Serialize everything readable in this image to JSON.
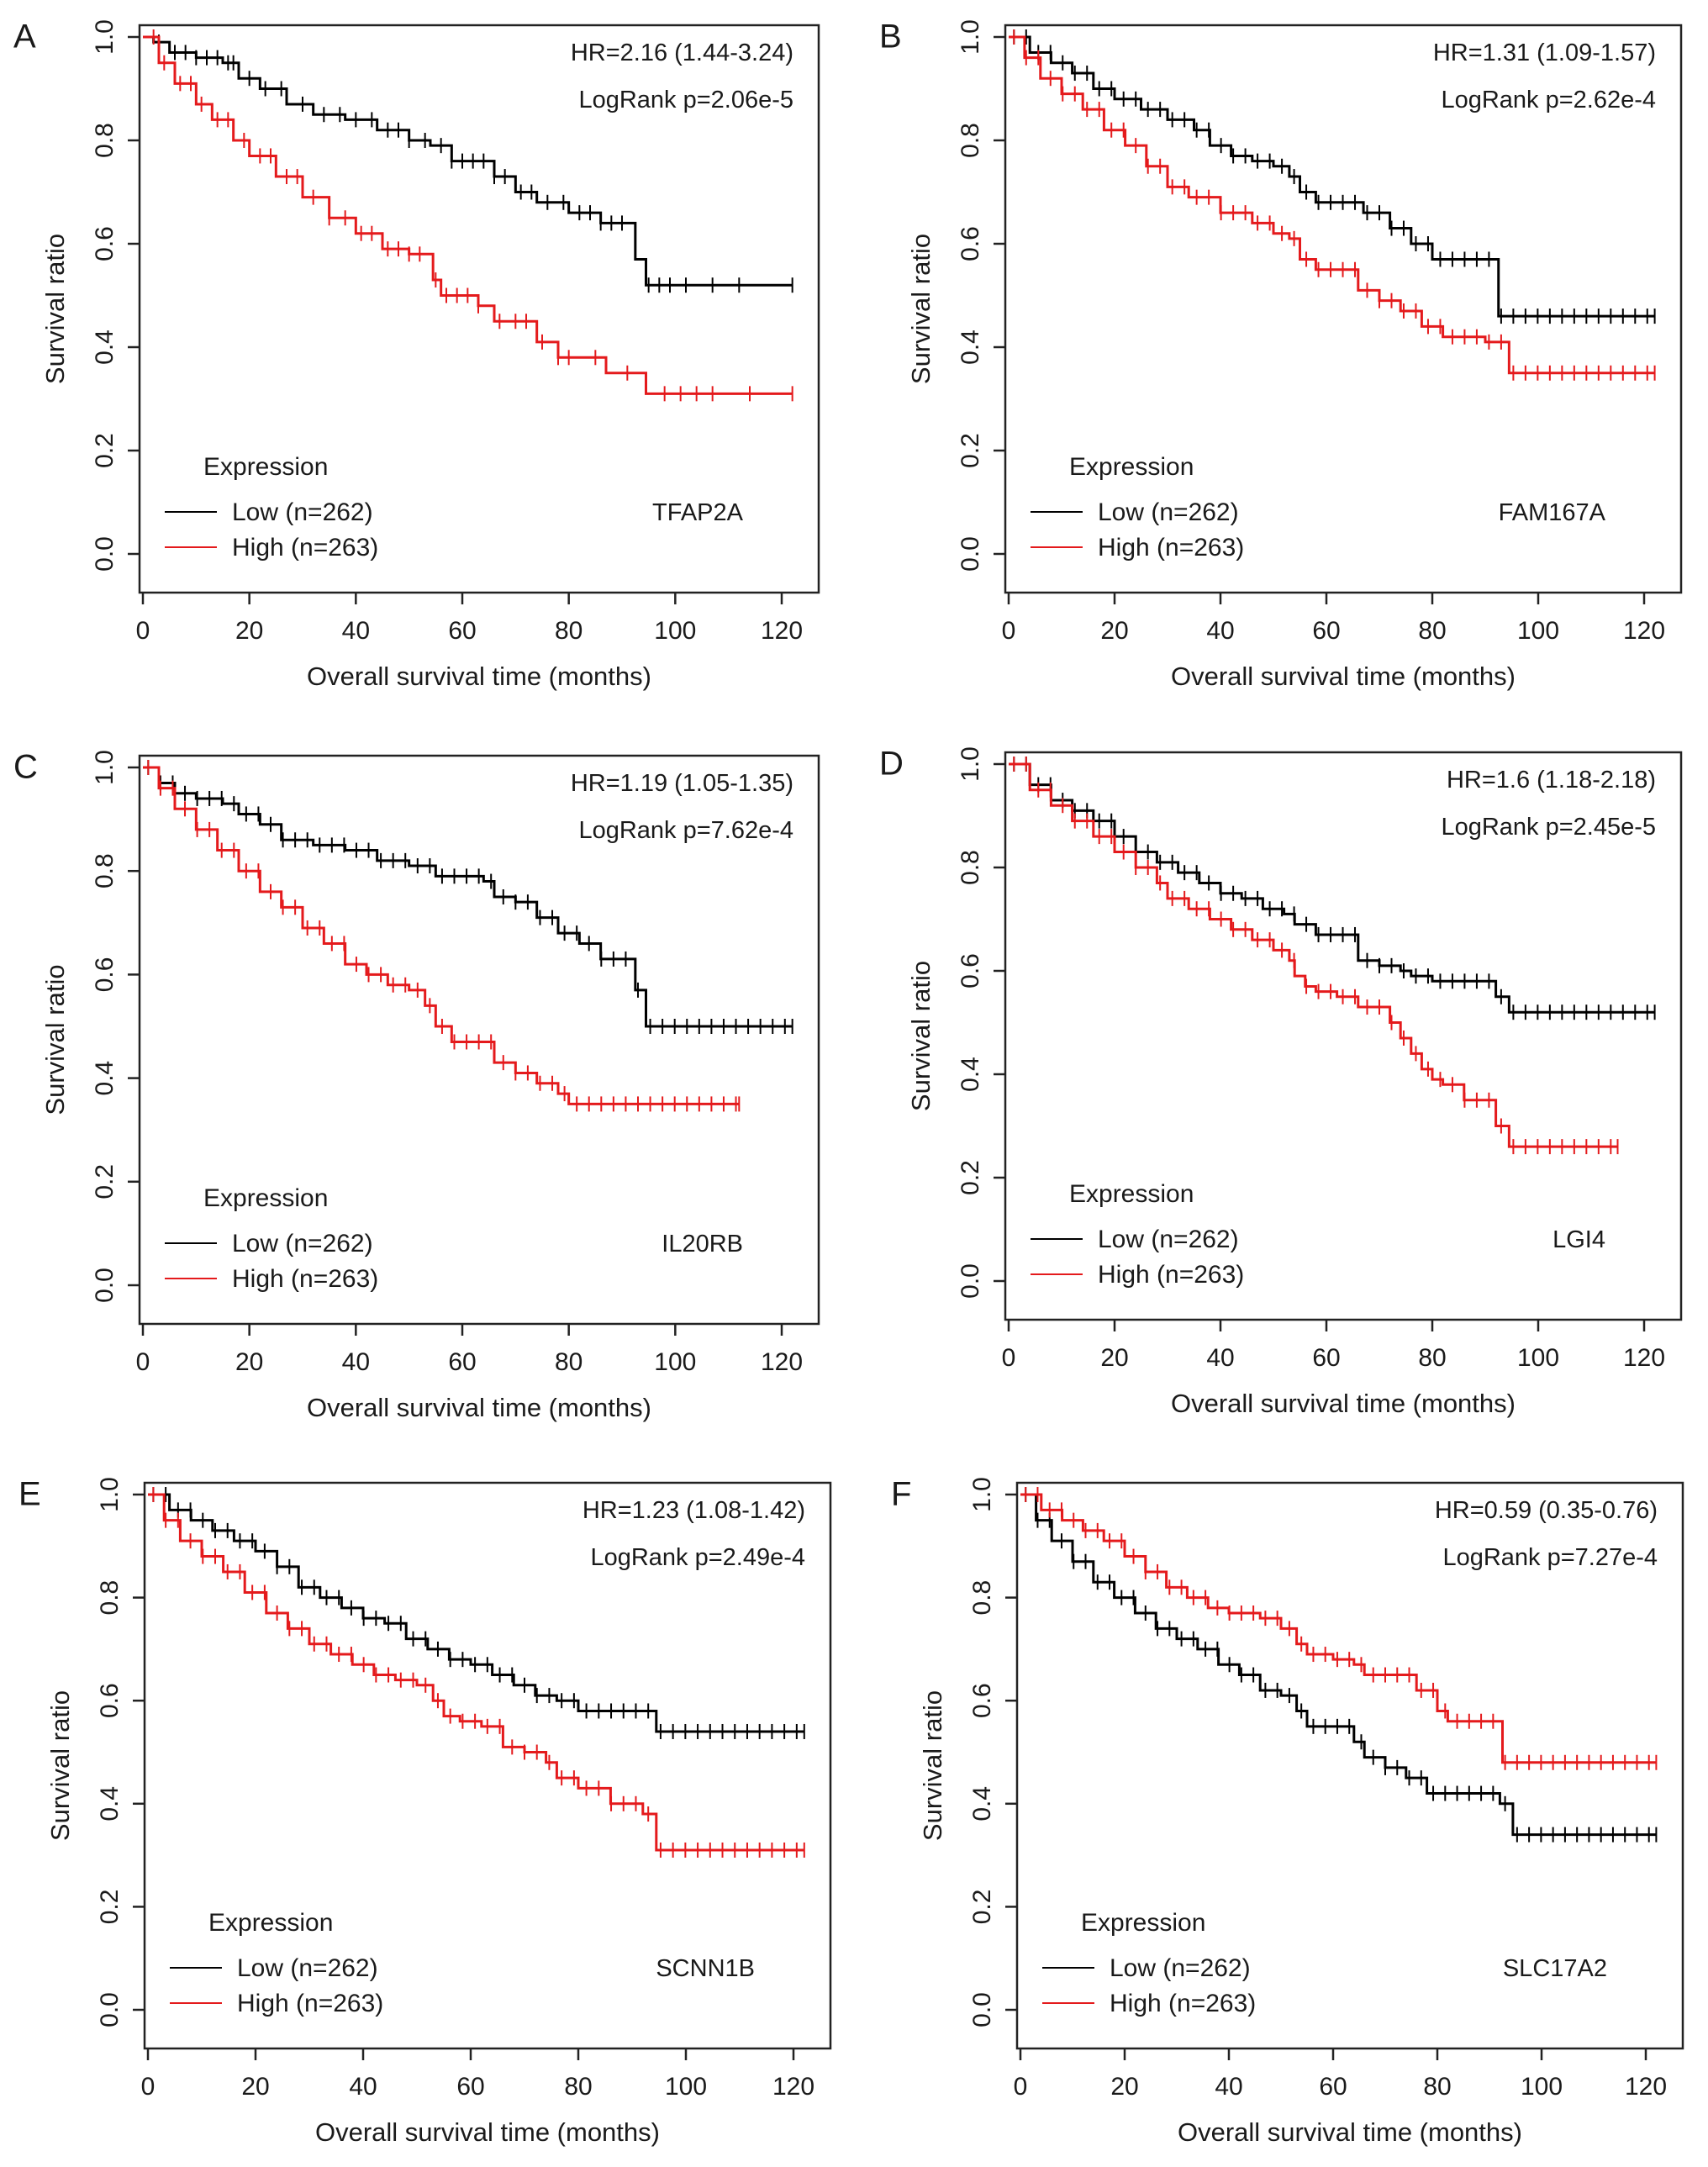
{
  "chart_data": [
    {
      "type": "line",
      "panel_label": "A",
      "gene": "TFAP2A",
      "hr_text": "HR=2.16 (1.44-3.24)",
      "logrank_text": "LogRank p=2.06e-5",
      "xlabel": "Overall survival time (months)",
      "ylabel": "Survival ratio",
      "xlim": [
        0,
        125
      ],
      "ylim": [
        -0.03,
        1.02
      ],
      "xticks": [
        0,
        20,
        40,
        60,
        80,
        100,
        120
      ],
      "yticks": [
        0.0,
        0.2,
        0.4,
        0.6,
        0.8,
        1.0
      ],
      "legend": {
        "title": "Expression",
        "position": "bottom-left",
        "entries": [
          {
            "label": "Low (n=262)",
            "color": "#000000"
          },
          {
            "label": "High (n=263)",
            "color": "#e41a1c"
          }
        ]
      },
      "series": [
        {
          "name": "Low (n=262)",
          "color": "#000000",
          "x": [
            0,
            2,
            5,
            10,
            15,
            18,
            22,
            27,
            32,
            38,
            44,
            50,
            54,
            58,
            66,
            70,
            74,
            80,
            86,
            92,
            92.5,
            94.5,
            122
          ],
          "y": [
            1.0,
            0.99,
            0.97,
            0.96,
            0.95,
            0.92,
            0.9,
            0.87,
            0.85,
            0.84,
            0.82,
            0.8,
            0.79,
            0.76,
            0.73,
            0.7,
            0.68,
            0.66,
            0.64,
            0.64,
            0.57,
            0.52,
            0.52
          ],
          "censor_x": [
            3,
            6,
            8,
            10,
            12,
            14,
            16,
            17,
            20,
            23,
            26,
            30,
            34,
            37,
            40,
            43,
            46,
            48,
            50,
            53,
            56,
            58,
            60,
            62,
            64,
            66,
            68,
            71,
            73,
            76,
            79,
            82,
            84,
            86,
            88,
            90,
            95,
            97,
            99,
            102,
            107,
            112,
            122
          ]
        },
        {
          "name": "High (n=263)",
          "color": "#e41a1c",
          "x": [
            0,
            3,
            6,
            10,
            13,
            17,
            20,
            25,
            30,
            35,
            40,
            45,
            50,
            53,
            54.5,
            56,
            60,
            63,
            66,
            70,
            74,
            78,
            81,
            87,
            94.5,
            122
          ],
          "y": [
            1.0,
            0.95,
            0.91,
            0.87,
            0.84,
            0.8,
            0.77,
            0.73,
            0.69,
            0.65,
            0.62,
            0.59,
            0.58,
            0.58,
            0.53,
            0.5,
            0.5,
            0.48,
            0.45,
            0.45,
            0.41,
            0.38,
            0.38,
            0.35,
            0.31,
            0.31
          ],
          "censor_x": [
            2,
            4,
            7,
            9,
            11,
            14,
            16,
            19,
            22,
            24,
            27,
            29,
            32,
            35,
            38,
            41,
            43,
            46,
            48,
            50,
            52,
            55,
            57,
            59,
            61,
            63,
            67,
            70,
            72,
            75,
            78,
            80,
            85,
            91,
            98,
            101,
            104,
            107,
            114,
            122
          ]
        }
      ]
    },
    {
      "type": "line",
      "panel_label": "B",
      "gene": "FAM167A",
      "hr_text": "HR=1.31 (1.09-1.57)",
      "logrank_text": "LogRank p=2.62e-4",
      "xlabel": "Overall survival time (months)",
      "ylabel": "Survival ratio",
      "xlim": [
        0,
        125
      ],
      "ylim": [
        -0.03,
        1.02
      ],
      "xticks": [
        0,
        20,
        40,
        60,
        80,
        100,
        120
      ],
      "yticks": [
        0.0,
        0.2,
        0.4,
        0.6,
        0.8,
        1.0
      ],
      "legend": {
        "title": "Expression",
        "position": "bottom-left",
        "entries": [
          {
            "label": "Low (n=262)",
            "color": "#000000"
          },
          {
            "label": "High (n=263)",
            "color": "#e41a1c"
          }
        ]
      },
      "series": [
        {
          "name": "Low (n=262)",
          "color": "#000000",
          "x": [
            0,
            4,
            8,
            12,
            16,
            20,
            25,
            30,
            35,
            38,
            42,
            46,
            50,
            53,
            55,
            58,
            63,
            67,
            72,
            76,
            80,
            86,
            92,
            92.5,
            122
          ],
          "y": [
            1.0,
            0.97,
            0.95,
            0.93,
            0.9,
            0.88,
            0.86,
            0.84,
            0.82,
            0.79,
            0.77,
            0.76,
            0.75,
            0.73,
            0.7,
            0.68,
            0.68,
            0.66,
            0.63,
            0.6,
            0.57,
            0.57,
            0.57,
            0.46,
            0.46
          ]
        },
        {
          "name": "High (n=263)",
          "color": "#e41a1c",
          "x": [
            0,
            3,
            6,
            10,
            14,
            18,
            22,
            26,
            30,
            34,
            40,
            46,
            50,
            53,
            55,
            58,
            62,
            66,
            70,
            74,
            78,
            82,
            86,
            90,
            94.5,
            122
          ],
          "y": [
            1.0,
            0.96,
            0.92,
            0.89,
            0.86,
            0.82,
            0.79,
            0.75,
            0.71,
            0.69,
            0.66,
            0.64,
            0.62,
            0.61,
            0.57,
            0.55,
            0.55,
            0.51,
            0.49,
            0.47,
            0.44,
            0.42,
            0.42,
            0.41,
            0.35,
            0.35
          ]
        }
      ]
    },
    {
      "type": "line",
      "panel_label": "C",
      "gene": "IL20RB",
      "hr_text": "HR=1.19 (1.05-1.35)",
      "logrank_text": "LogRank p=7.62e-4",
      "xlabel": "Overall survival time (months)",
      "ylabel": "Survival ratio",
      "xlim": [
        0,
        125
      ],
      "ylim": [
        -0.03,
        1.02
      ],
      "xticks": [
        0,
        20,
        40,
        60,
        80,
        100,
        120
      ],
      "yticks": [
        0.0,
        0.2,
        0.4,
        0.6,
        0.8,
        1.0
      ],
      "legend": {
        "title": "Expression",
        "position": "bottom-left",
        "entries": [
          {
            "label": "Low (n=262)",
            "color": "#000000"
          },
          {
            "label": "High (n=263)",
            "color": "#e41a1c"
          }
        ]
      },
      "series": [
        {
          "name": "Low (n=262)",
          "color": "#000000",
          "x": [
            0,
            3,
            6,
            10,
            15,
            18,
            22,
            26,
            32,
            38,
            44,
            50,
            55,
            60,
            64,
            66,
            70,
            74,
            78,
            82,
            86,
            92,
            92.5,
            94.5,
            122
          ],
          "y": [
            1.0,
            0.97,
            0.95,
            0.94,
            0.93,
            0.91,
            0.89,
            0.86,
            0.85,
            0.84,
            0.82,
            0.81,
            0.79,
            0.79,
            0.78,
            0.75,
            0.74,
            0.71,
            0.68,
            0.66,
            0.63,
            0.63,
            0.57,
            0.5,
            0.5
          ]
        },
        {
          "name": "High (n=263)",
          "color": "#e41a1c",
          "x": [
            0,
            3,
            6,
            10,
            14,
            18,
            22,
            26,
            30,
            34,
            38,
            42,
            46,
            50,
            53,
            55,
            58,
            62,
            66,
            70,
            74,
            78,
            80,
            112
          ],
          "y": [
            1.0,
            0.96,
            0.92,
            0.88,
            0.84,
            0.8,
            0.76,
            0.73,
            0.69,
            0.66,
            0.62,
            0.6,
            0.58,
            0.57,
            0.54,
            0.5,
            0.47,
            0.47,
            0.43,
            0.41,
            0.39,
            0.37,
            0.35,
            0.35
          ]
        }
      ]
    },
    {
      "type": "line",
      "panel_label": "D",
      "gene": "LGI4",
      "hr_text": "HR=1.6 (1.18-2.18)",
      "logrank_text": "LogRank p=2.45e-5",
      "xlabel": "Overall survival time (months)",
      "ylabel": "Survival ratio",
      "xlim": [
        0,
        125
      ],
      "ylim": [
        -0.03,
        1.02
      ],
      "xticks": [
        0,
        20,
        40,
        60,
        80,
        100,
        120
      ],
      "yticks": [
        0.0,
        0.2,
        0.4,
        0.6,
        0.8,
        1.0
      ],
      "legend": {
        "title": "Expression",
        "position": "bottom-left",
        "entries": [
          {
            "label": "Low (n=262)",
            "color": "#000000"
          },
          {
            "label": "High (n=263)",
            "color": "#e41a1c"
          }
        ]
      },
      "series": [
        {
          "name": "Low (n=262)",
          "color": "#000000",
          "x": [
            0,
            4,
            8,
            12,
            16,
            20,
            24,
            28,
            32,
            36,
            40,
            44,
            48,
            52,
            54,
            58,
            64,
            66,
            70,
            74,
            76,
            80,
            90,
            92,
            94.5,
            122
          ],
          "y": [
            1.0,
            0.96,
            0.93,
            0.91,
            0.89,
            0.86,
            0.83,
            0.81,
            0.79,
            0.77,
            0.75,
            0.74,
            0.72,
            0.71,
            0.69,
            0.67,
            0.67,
            0.62,
            0.61,
            0.6,
            0.59,
            0.58,
            0.58,
            0.55,
            0.52,
            0.52
          ]
        },
        {
          "name": "High (n=263)",
          "color": "#e41a1c",
          "x": [
            0,
            4,
            8,
            12,
            16,
            20,
            24,
            28,
            30,
            34,
            38,
            42,
            46,
            50,
            53,
            54,
            56,
            58,
            62,
            66,
            70,
            72,
            74,
            76,
            78,
            80,
            82,
            86,
            92,
            94.5,
            115
          ],
          "y": [
            1.0,
            0.95,
            0.92,
            0.89,
            0.86,
            0.83,
            0.8,
            0.77,
            0.74,
            0.72,
            0.7,
            0.68,
            0.66,
            0.64,
            0.62,
            0.59,
            0.57,
            0.56,
            0.55,
            0.53,
            0.53,
            0.5,
            0.47,
            0.44,
            0.41,
            0.39,
            0.38,
            0.35,
            0.3,
            0.26,
            0.26
          ]
        }
      ]
    },
    {
      "type": "line",
      "panel_label": "E",
      "gene": "SCNN1B",
      "hr_text": "HR=1.23 (1.08-1.42)",
      "logrank_text": "LogRank p=2.49e-4",
      "xlabel": "Overall survival time (months)",
      "ylabel": "Survival ratio",
      "xlim": [
        0,
        125
      ],
      "ylim": [
        -0.03,
        1.02
      ],
      "xticks": [
        0,
        20,
        40,
        60,
        80,
        100,
        120
      ],
      "yticks": [
        0.0,
        0.2,
        0.4,
        0.6,
        0.8,
        1.0
      ],
      "legend": {
        "title": "Expression",
        "position": "bottom-left",
        "entries": [
          {
            "label": "Low (n=262)",
            "color": "#000000"
          },
          {
            "label": "High (n=263)",
            "color": "#e41a1c"
          }
        ]
      },
      "series": [
        {
          "name": "Low (n=262)",
          "color": "#000000",
          "x": [
            0,
            4,
            8,
            12,
            16,
            20,
            24,
            28,
            32,
            36,
            40,
            44,
            48,
            52,
            56,
            60,
            64,
            68,
            72,
            76,
            80,
            92,
            94.5,
            122
          ],
          "y": [
            1.0,
            0.97,
            0.95,
            0.93,
            0.91,
            0.89,
            0.86,
            0.82,
            0.8,
            0.78,
            0.76,
            0.75,
            0.72,
            0.7,
            0.68,
            0.67,
            0.65,
            0.63,
            0.61,
            0.6,
            0.58,
            0.58,
            0.54,
            0.54
          ]
        },
        {
          "name": "High (n=263)",
          "color": "#e41a1c",
          "x": [
            0,
            3,
            6,
            10,
            14,
            18,
            22,
            26,
            30,
            34,
            38,
            42,
            46,
            50,
            53,
            55,
            58,
            62,
            66,
            70,
            74,
            76,
            80,
            86,
            92,
            94.5,
            122
          ],
          "y": [
            1.0,
            0.95,
            0.91,
            0.88,
            0.85,
            0.81,
            0.77,
            0.74,
            0.71,
            0.69,
            0.67,
            0.65,
            0.64,
            0.63,
            0.6,
            0.57,
            0.56,
            0.55,
            0.51,
            0.5,
            0.48,
            0.45,
            0.43,
            0.4,
            0.38,
            0.31,
            0.31
          ]
        }
      ]
    },
    {
      "type": "line",
      "panel_label": "F",
      "gene": "SLC17A2",
      "hr_text": "HR=0.59 (0.35-0.76)",
      "logrank_text": "LogRank p=7.27e-4",
      "xlabel": "Overall survival time (months)",
      "ylabel": "Survival ratio",
      "xlim": [
        0,
        125
      ],
      "ylim": [
        -0.03,
        1.02
      ],
      "xticks": [
        0,
        20,
        40,
        60,
        80,
        100,
        120
      ],
      "yticks": [
        0.0,
        0.2,
        0.4,
        0.6,
        0.8,
        1.0
      ],
      "legend": {
        "title": "Expression",
        "position": "bottom-left",
        "entries": [
          {
            "label": "Low (n=262)",
            "color": "#000000"
          },
          {
            "label": "High (n=263)",
            "color": "#e41a1c"
          }
        ]
      },
      "series": [
        {
          "name": "Low (n=262)",
          "color": "#000000",
          "x": [
            0,
            3,
            6,
            10,
            14,
            18,
            22,
            26,
            30,
            34,
            38,
            42,
            46,
            50,
            53,
            55,
            60,
            64,
            66,
            70,
            74,
            78,
            86,
            92,
            94.5,
            122
          ],
          "y": [
            1.0,
            0.95,
            0.91,
            0.87,
            0.83,
            0.8,
            0.77,
            0.74,
            0.72,
            0.7,
            0.67,
            0.65,
            0.62,
            0.61,
            0.58,
            0.55,
            0.55,
            0.52,
            0.49,
            0.47,
            0.45,
            0.42,
            0.42,
            0.4,
            0.34,
            0.34
          ]
        },
        {
          "name": "High (n=263)",
          "color": "#e41a1c",
          "x": [
            0,
            4,
            8,
            12,
            16,
            20,
            24,
            28,
            32,
            36,
            40,
            46,
            50,
            53,
            55,
            60,
            64,
            66,
            74,
            76,
            80,
            82,
            86,
            92,
            92.5,
            122
          ],
          "y": [
            1.0,
            0.97,
            0.95,
            0.93,
            0.91,
            0.88,
            0.85,
            0.82,
            0.8,
            0.78,
            0.77,
            0.76,
            0.74,
            0.71,
            0.69,
            0.68,
            0.67,
            0.65,
            0.65,
            0.62,
            0.58,
            0.56,
            0.56,
            0.56,
            0.48,
            0.48
          ]
        }
      ]
    }
  ]
}
